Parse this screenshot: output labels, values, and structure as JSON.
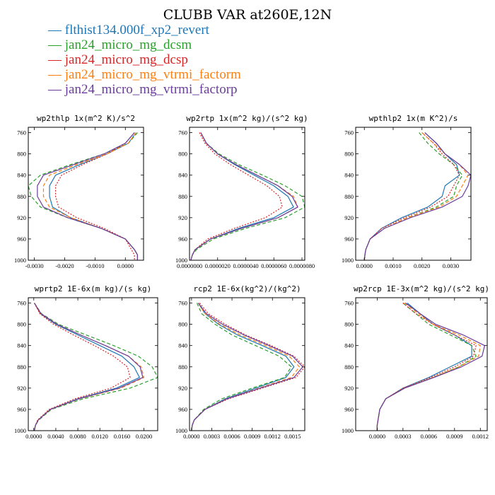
{
  "title": "CLUBB VAR at260E,12N",
  "legend": [
    {
      "label": "flthist134.000f_xp2_revert",
      "color": "#1f77b4",
      "symbol": "—"
    },
    {
      "label": "jan24_micro_mg_dcsm",
      "color": "#2ca02c",
      "symbol": "—"
    },
    {
      "label": "jan24_micro_mg_dcsp",
      "color": "#d62728",
      "symbol": "—"
    },
    {
      "label": "jan24_micro_mg_vtrmi_factorm",
      "color": "#ff7f0e",
      "symbol": "—"
    },
    {
      "label": "jan24_micro_mg_vtrmi_factorp",
      "color": "#6a3d9a",
      "symbol": "—"
    }
  ],
  "chart_data": [
    {
      "type": "line",
      "title": "wp2thlp  1x(m^2 K)/s^2",
      "xlim": [
        -0.0032,
        0.0006
      ],
      "ylim": [
        1000,
        750
      ],
      "xticks": [
        -0.003,
        -0.002,
        -0.001,
        0.0
      ],
      "xtick_labels": [
        "-0.0030",
        "-0.0020",
        "-0.0010",
        "0.0000"
      ],
      "yticks": [
        760,
        800,
        840,
        880,
        920,
        960,
        1000
      ],
      "y": [
        760,
        780,
        800,
        820,
        840,
        860,
        880,
        900,
        920,
        940,
        960,
        980,
        990,
        1000
      ],
      "series": [
        {
          "name": "flthist134.000f_xp2_revert",
          "color": "#1f77b4",
          "dash": "solid",
          "x": [
            0.00035,
            0.0001,
            -0.0006,
            -0.0015,
            -0.0023,
            -0.0025,
            -0.0025,
            -0.0024,
            -0.0018,
            -0.0008,
            0.0,
            0.0003,
            0.0004,
            0.0004
          ]
        },
        {
          "name": "jan24_micro_mg_dcsm",
          "color": "#2ca02c",
          "dash": "dash",
          "x": [
            0.0004,
            0.0001,
            -0.0007,
            -0.0018,
            -0.0028,
            -0.0032,
            -0.0031,
            -0.0028,
            -0.0019,
            -0.0008,
            0.0,
            0.0003,
            0.0004,
            0.0004
          ]
        },
        {
          "name": "jan24_micro_mg_dcsp",
          "color": "#d62728",
          "dash": "dot",
          "x": [
            0.0003,
            0.0,
            -0.0006,
            -0.0014,
            -0.0021,
            -0.0023,
            -0.0023,
            -0.0022,
            -0.0016,
            -0.0007,
            0.0,
            0.0002,
            0.0003,
            0.0003
          ]
        },
        {
          "name": "jan24_micro_mg_vtrmi_factorm",
          "color": "#ff7f0e",
          "dash": "dash",
          "x": [
            0.00035,
            0.0001,
            -0.0006,
            -0.0016,
            -0.0025,
            -0.0027,
            -0.0027,
            -0.0025,
            -0.0018,
            -0.0008,
            0.0,
            0.0003,
            0.0004,
            0.0004
          ]
        },
        {
          "name": "jan24_micro_mg_vtrmi_factorp",
          "color": "#6a3d9a",
          "dash": "solid",
          "x": [
            0.0003,
            0.0,
            -0.0007,
            -0.0017,
            -0.0027,
            -0.0029,
            -0.0029,
            -0.0027,
            -0.0019,
            -0.0008,
            0.0,
            0.0003,
            0.0004,
            0.0004
          ]
        }
      ]
    },
    {
      "type": "line",
      "title": "wp2rtp  1x(m^2 kg)/(s^2 kg)",
      "xlim": [
        0.0,
        8.2e-06
      ],
      "ylim": [
        1000,
        750
      ],
      "xticks": [
        0.0,
        2e-06,
        4e-06,
        6e-06,
        8e-06
      ],
      "xtick_labels": [
        "0.0000000",
        "0.0000020",
        "0.0000040",
        "0.0000060",
        "0.0000080"
      ],
      "yticks": [
        760,
        800,
        840,
        880,
        920,
        960,
        1000
      ],
      "y": [
        760,
        780,
        800,
        820,
        840,
        860,
        880,
        900,
        920,
        940,
        960,
        980,
        990,
        1000
      ],
      "series": [
        {
          "name": "flthist134.000f_xp2_revert",
          "color": "#1f77b4",
          "dash": "solid",
          "x": [
            8e-07,
            1.2e-06,
            2e-06,
            3.2e-06,
            4.6e-06,
            6e-06,
            7e-06,
            7.4e-06,
            6e-06,
            3.5e-06,
            1.5e-06,
            4e-07,
            2e-07,
            1e-07
          ]
        },
        {
          "name": "jan24_micro_mg_dcsm",
          "color": "#2ca02c",
          "dash": "dash",
          "x": [
            8e-07,
            1.2e-06,
            2.1e-06,
            3.5e-06,
            5.2e-06,
            6.8e-06,
            8e-06,
            8.2e-06,
            6.8e-06,
            4e-06,
            1.7e-06,
            5e-07,
            2e-07,
            1e-07
          ]
        },
        {
          "name": "jan24_micro_mg_dcsp",
          "color": "#d62728",
          "dash": "dot",
          "x": [
            7e-07,
            1.1e-06,
            1.8e-06,
            2.9e-06,
            4.2e-06,
            5.5e-06,
            6.4e-06,
            6.6e-06,
            5.4e-06,
            3.2e-06,
            1.3e-06,
            4e-07,
            2e-07,
            1e-07
          ]
        },
        {
          "name": "jan24_micro_mg_vtrmi_factorm",
          "color": "#ff7f0e",
          "dash": "dash",
          "x": [
            8e-07,
            1.2e-06,
            2e-06,
            3.3e-06,
            4.8e-06,
            6.3e-06,
            7.4e-06,
            7.7e-06,
            6.3e-06,
            3.7e-06,
            1.5e-06,
            4e-07,
            2e-07,
            1e-07
          ]
        },
        {
          "name": "jan24_micro_mg_vtrmi_factorp",
          "color": "#6a3d9a",
          "dash": "solid",
          "x": [
            8e-07,
            1.2e-06,
            2e-06,
            3.3e-06,
            4.8e-06,
            6.3e-06,
            7.3e-06,
            7.7e-06,
            6.3e-06,
            3.7e-06,
            1.5e-06,
            4e-07,
            2e-07,
            1e-07
          ]
        }
      ]
    },
    {
      "type": "line",
      "title": "wpthlp2  1x(m K^2)/s",
      "xlim": [
        -0.0003,
        0.0037
      ],
      "ylim": [
        1000,
        750
      ],
      "xticks": [
        0.0,
        0.001,
        0.002,
        0.003
      ],
      "xtick_labels": [
        "0.0000",
        "0.0010",
        "0.0020",
        "0.0030"
      ],
      "yticks": [
        760,
        800,
        840,
        880,
        920,
        960,
        1000
      ],
      "y": [
        760,
        780,
        800,
        820,
        840,
        860,
        880,
        900,
        920,
        940,
        960,
        980,
        990,
        1000
      ],
      "series": [
        {
          "name": "flthist134.000f_xp2_revert",
          "color": "#1f77b4",
          "dash": "solid",
          "x": [
            0.0021,
            0.0025,
            0.0028,
            0.0032,
            0.0033,
            0.0028,
            0.0027,
            0.0022,
            0.0013,
            0.0006,
            0.0002,
            5e-05,
            2e-05,
            0.0
          ]
        },
        {
          "name": "jan24_micro_mg_dcsm",
          "color": "#2ca02c",
          "dash": "dash",
          "x": [
            0.0019,
            0.0022,
            0.0026,
            0.0031,
            0.0034,
            0.0032,
            0.0031,
            0.0025,
            0.0015,
            0.0007,
            0.0002,
            5e-05,
            2e-05,
            0.0
          ]
        },
        {
          "name": "jan24_micro_mg_dcsp",
          "color": "#d62728",
          "dash": "dot",
          "x": [
            0.002,
            0.0024,
            0.0027,
            0.0031,
            0.0033,
            0.0031,
            0.0029,
            0.0023,
            0.0014,
            0.0006,
            0.0002,
            5e-05,
            2e-05,
            0.0
          ]
        },
        {
          "name": "jan24_micro_mg_vtrmi_factorm",
          "color": "#ff7f0e",
          "dash": "dash",
          "x": [
            0.002,
            0.0024,
            0.0028,
            0.0033,
            0.0036,
            0.0034,
            0.0032,
            0.0026,
            0.0015,
            0.0007,
            0.0002,
            5e-05,
            2e-05,
            0.0
          ]
        },
        {
          "name": "jan24_micro_mg_vtrmi_factorp",
          "color": "#6a3d9a",
          "dash": "solid",
          "x": [
            0.0021,
            0.0025,
            0.0028,
            0.0033,
            0.0037,
            0.0036,
            0.0034,
            0.0027,
            0.0016,
            0.0007,
            0.0002,
            5e-05,
            2e-05,
            0.0
          ]
        }
      ]
    },
    {
      "type": "line",
      "title": "wprtp2  1E-6x(m kg)/(s kg)",
      "xlim": [
        -0.001,
        0.0225
      ],
      "ylim": [
        1000,
        750
      ],
      "xticks": [
        0.0,
        0.004,
        0.008,
        0.012,
        0.016,
        0.02
      ],
      "xtick_labels": [
        "0.0000",
        "0.0040",
        "0.0080",
        "0.0120",
        "0.0160",
        "0.0200"
      ],
      "yticks": [
        760,
        800,
        840,
        880,
        920,
        960,
        1000
      ],
      "y": [
        760,
        780,
        800,
        820,
        840,
        860,
        880,
        900,
        920,
        940,
        960,
        980,
        990,
        1000
      ],
      "series": [
        {
          "name": "flthist134.000f_xp2_revert",
          "color": "#1f77b4",
          "dash": "solid",
          "x": [
            0.0001,
            0.0012,
            0.004,
            0.008,
            0.012,
            0.016,
            0.0182,
            0.0192,
            0.015,
            0.008,
            0.003,
            0.0008,
            0.0003,
            0.0001
          ]
        },
        {
          "name": "jan24_micro_mg_dcsm",
          "color": "#2ca02c",
          "dash": "dash",
          "x": [
            0.0001,
            0.0014,
            0.0045,
            0.0095,
            0.0145,
            0.019,
            0.0215,
            0.0225,
            0.0175,
            0.009,
            0.0032,
            0.0009,
            0.0003,
            0.0001
          ]
        },
        {
          "name": "jan24_micro_mg_dcsp",
          "color": "#d62728",
          "dash": "dot",
          "x": [
            0.0001,
            0.0011,
            0.0036,
            0.0072,
            0.011,
            0.0145,
            0.017,
            0.0175,
            0.014,
            0.0075,
            0.0028,
            0.0007,
            0.0003,
            0.0001
          ]
        },
        {
          "name": "jan24_micro_mg_vtrmi_factorm",
          "color": "#ff7f0e",
          "dash": "dash",
          "x": [
            0.0001,
            0.0013,
            0.0042,
            0.0085,
            0.013,
            0.0172,
            0.0195,
            0.02,
            0.0158,
            0.0083,
            0.003,
            0.0008,
            0.0003,
            0.0001
          ]
        },
        {
          "name": "jan24_micro_mg_vtrmi_factorp",
          "color": "#6a3d9a",
          "dash": "solid",
          "x": [
            0.0001,
            0.0013,
            0.0042,
            0.0085,
            0.013,
            0.0172,
            0.0193,
            0.0198,
            0.0155,
            0.0082,
            0.003,
            0.0008,
            0.0003,
            0.0001
          ]
        }
      ]
    },
    {
      "type": "line",
      "title": "rcp2  1E-6x(kg^2)/(kg^2)",
      "xlim": [
        -3e-05,
        0.00168
      ],
      "ylim": [
        1000,
        750
      ],
      "xticks": [
        0.0,
        0.0003,
        0.0006,
        0.0009,
        0.0012,
        0.0015
      ],
      "xtick_labels": [
        "0.0000",
        "0.0003",
        "0.0006",
        "0.0009",
        "0.0012",
        "0.0015"
      ],
      "yticks": [
        760,
        800,
        840,
        880,
        920,
        960,
        1000
      ],
      "y": [
        760,
        780,
        800,
        820,
        840,
        860,
        880,
        900,
        920,
        940,
        960,
        980,
        990,
        1000
      ],
      "series": [
        {
          "name": "flthist134.000f_xp2_revert",
          "color": "#1f77b4",
          "dash": "solid",
          "x": [
            0.0001,
            0.0002,
            0.0004,
            0.00068,
            0.00105,
            0.0014,
            0.00152,
            0.0014,
            0.00095,
            0.0005,
            0.0002,
            4e-05,
            1e-05,
            0.0
          ]
        },
        {
          "name": "jan24_micro_mg_dcsm",
          "color": "#2ca02c",
          "dash": "dash",
          "x": [
            8e-05,
            0.00015,
            0.00035,
            0.0006,
            0.00095,
            0.0013,
            0.00148,
            0.00138,
            0.0009,
            0.00045,
            0.00018,
            4e-05,
            1e-05,
            0.0
          ]
        },
        {
          "name": "jan24_micro_mg_dcsp",
          "color": "#d62728",
          "dash": "dot",
          "x": [
            0.00012,
            0.00025,
            0.0005,
            0.0008,
            0.00118,
            0.00152,
            0.00168,
            0.00155,
            0.00105,
            0.00055,
            0.0002,
            4e-05,
            1e-05,
            0.0
          ]
        },
        {
          "name": "jan24_micro_mg_vtrmi_factorm",
          "color": "#ff7f0e",
          "dash": "dash",
          "x": [
            0.0001,
            0.0002,
            0.00042,
            0.00072,
            0.0011,
            0.00145,
            0.0016,
            0.00148,
            0.001,
            0.00052,
            0.0002,
            4e-05,
            1e-05,
            0.0
          ]
        },
        {
          "name": "jan24_micro_mg_vtrmi_factorp",
          "color": "#6a3d9a",
          "dash": "solid",
          "x": [
            0.0001,
            0.00022,
            0.00046,
            0.00078,
            0.00115,
            0.0015,
            0.00165,
            0.00152,
            0.00102,
            0.00053,
            0.0002,
            4e-05,
            1e-05,
            0.0
          ]
        }
      ]
    },
    {
      "type": "line",
      "title": "wp2rcp  1E-3x(m^2 kg)/(s^2 kg)",
      "xlim": [
        -0.00025,
        0.00128
      ],
      "ylim": [
        1000,
        750
      ],
      "xticks": [
        0.0,
        0.0003,
        0.0006,
        0.0009,
        0.0012
      ],
      "xtick_labels": [
        "0.0000",
        "0.0003",
        "0.0006",
        "0.0009",
        "0.0012"
      ],
      "yticks": [
        760,
        800,
        840,
        880,
        920,
        960,
        1000
      ],
      "y": [
        760,
        780,
        800,
        820,
        840,
        860,
        880,
        900,
        920,
        940,
        960,
        980,
        990,
        1000
      ],
      "series": [
        {
          "name": "flthist134.000f_xp2_revert",
          "color": "#1f77b4",
          "dash": "solid",
          "x": [
            0.00035,
            0.0005,
            0.00065,
            0.0009,
            0.0011,
            0.0011,
            0.00085,
            0.0006,
            0.0003,
            0.0001,
            3e-05,
            1e-05,
            0.0,
            0.0
          ]
        },
        {
          "name": "jan24_micro_mg_dcsm",
          "color": "#2ca02c",
          "dash": "dash",
          "x": [
            0.0003,
            0.00045,
            0.0006,
            0.00085,
            0.0011,
            0.00115,
            0.00095,
            0.00065,
            0.00032,
            0.0001,
            3e-05,
            1e-05,
            0.0,
            0.0
          ]
        },
        {
          "name": "jan24_micro_mg_dcsp",
          "color": "#d62728",
          "dash": "dot",
          "x": [
            0.0003,
            0.00045,
            0.00065,
            0.0009,
            0.00115,
            0.00112,
            0.0009,
            0.00062,
            0.0003,
            0.0001,
            3e-05,
            1e-05,
            0.0,
            0.0
          ]
        },
        {
          "name": "jan24_micro_mg_vtrmi_factorm",
          "color": "#ff7f0e",
          "dash": "dash",
          "x": [
            0.00032,
            0.00048,
            0.00065,
            0.00095,
            0.0012,
            0.00118,
            0.00095,
            0.00065,
            0.00032,
            0.0001,
            3e-05,
            1e-05,
            0.0,
            0.0
          ]
        },
        {
          "name": "jan24_micro_mg_vtrmi_factorp",
          "color": "#6a3d9a",
          "dash": "solid",
          "x": [
            0.00033,
            0.0005,
            0.00068,
            0.001,
            0.00125,
            0.00122,
            0.00098,
            0.00066,
            0.00032,
            0.0001,
            3e-05,
            1e-05,
            0.0,
            0.0
          ]
        }
      ]
    }
  ]
}
